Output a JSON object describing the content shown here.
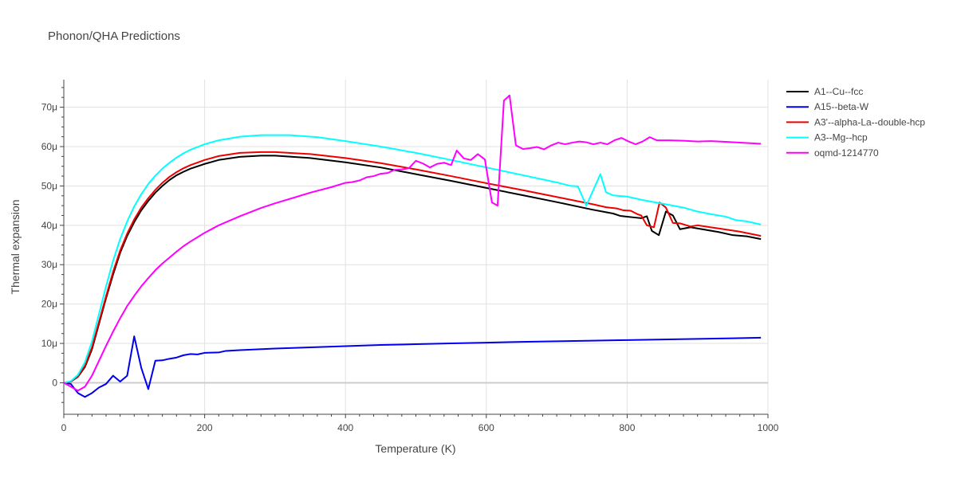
{
  "chart_data": {
    "type": "line",
    "title": "Phonon/QHA Predictions",
    "xlabel": "Temperature (K)",
    "ylabel": "Thermal expansion",
    "xlim": [
      0,
      1000
    ],
    "ylim": [
      -8e-06,
      7.7e-05
    ],
    "xticks": [
      0,
      200,
      400,
      600,
      800,
      1000
    ],
    "xtick_labels": [
      "0",
      "200",
      "400",
      "600",
      "800",
      "1000"
    ],
    "yticks": [
      0,
      1e-05,
      2e-05,
      3e-05,
      4e-05,
      5e-05,
      6e-05,
      7e-05
    ],
    "ytick_labels": [
      "0",
      "10μ",
      "20μ",
      "30μ",
      "40μ",
      "50μ",
      "60μ",
      "70μ"
    ],
    "grid": true,
    "legend_position": "top-right",
    "series": [
      {
        "name": "A1--Cu--fcc",
        "color": "#000000",
        "points": [
          [
            0,
            0
          ],
          [
            10,
            3e-07
          ],
          [
            20,
            1.5e-06
          ],
          [
            30,
            4e-06
          ],
          [
            40,
            8.5e-06
          ],
          [
            50,
            1.5e-05
          ],
          [
            60,
            2.15e-05
          ],
          [
            70,
            2.75e-05
          ],
          [
            80,
            3.3e-05
          ],
          [
            90,
            3.73e-05
          ],
          [
            100,
            4.08e-05
          ],
          [
            110,
            4.38e-05
          ],
          [
            120,
            4.62e-05
          ],
          [
            130,
            4.83e-05
          ],
          [
            140,
            5e-05
          ],
          [
            150,
            5.15e-05
          ],
          [
            160,
            5.27e-05
          ],
          [
            170,
            5.36e-05
          ],
          [
            180,
            5.44e-05
          ],
          [
            200,
            5.56e-05
          ],
          [
            220,
            5.66e-05
          ],
          [
            250,
            5.74e-05
          ],
          [
            280,
            5.77e-05
          ],
          [
            300,
            5.77e-05
          ],
          [
            350,
            5.71e-05
          ],
          [
            400,
            5.6e-05
          ],
          [
            450,
            5.47e-05
          ],
          [
            500,
            5.3e-05
          ],
          [
            550,
            5.13e-05
          ],
          [
            600,
            4.95e-05
          ],
          [
            650,
            4.77e-05
          ],
          [
            700,
            4.59e-05
          ],
          [
            750,
            4.4e-05
          ],
          [
            780,
            4.3e-05
          ],
          [
            790,
            4.24e-05
          ],
          [
            800,
            4.22e-05
          ],
          [
            810,
            4.2e-05
          ],
          [
            820,
            4.18e-05
          ],
          [
            828,
            4.23e-05
          ],
          [
            835,
            3.86e-05
          ],
          [
            845,
            3.75e-05
          ],
          [
            855,
            4.35e-05
          ],
          [
            865,
            4.25e-05
          ],
          [
            875,
            3.9e-05
          ],
          [
            890,
            3.95e-05
          ],
          [
            910,
            3.89e-05
          ],
          [
            930,
            3.83e-05
          ],
          [
            950,
            3.75e-05
          ],
          [
            970,
            3.72e-05
          ],
          [
            990,
            3.65e-05
          ]
        ]
      },
      {
        "name": "A15--beta-W",
        "color": "#0000ee",
        "points": [
          [
            0,
            0
          ],
          [
            10,
            -3e-07
          ],
          [
            20,
            -2.6e-06
          ],
          [
            30,
            -3.6e-06
          ],
          [
            40,
            -2.6e-06
          ],
          [
            50,
            -1.2e-06
          ],
          [
            60,
            -3e-07
          ],
          [
            70,
            1.8e-06
          ],
          [
            80,
            3e-07
          ],
          [
            90,
            1.8e-06
          ],
          [
            100,
            1.18e-05
          ],
          [
            110,
            3.8e-06
          ],
          [
            120,
            -1.6e-06
          ],
          [
            130,
            5.6e-06
          ],
          [
            140,
            5.7e-06
          ],
          [
            150,
            6.1e-06
          ],
          [
            160,
            6.4e-06
          ],
          [
            170,
            7e-06
          ],
          [
            180,
            7.3e-06
          ],
          [
            190,
            7.2e-06
          ],
          [
            200,
            7.6e-06
          ],
          [
            220,
            7.7e-06
          ],
          [
            230,
            8.1e-06
          ],
          [
            250,
            8.3e-06
          ],
          [
            300,
            8.7e-06
          ],
          [
            350,
            9e-06
          ],
          [
            400,
            9.3e-06
          ],
          [
            450,
            9.6e-06
          ],
          [
            500,
            9.8e-06
          ],
          [
            550,
            1e-05
          ],
          [
            600,
            1.02e-05
          ],
          [
            650,
            1.04e-05
          ],
          [
            700,
            1.055e-05
          ],
          [
            750,
            1.07e-05
          ],
          [
            800,
            1.085e-05
          ],
          [
            850,
            1.1e-05
          ],
          [
            900,
            1.115e-05
          ],
          [
            950,
            1.13e-05
          ],
          [
            990,
            1.145e-05
          ]
        ]
      },
      {
        "name": "A3'--alpha-La--double-hcp",
        "color": "#ee0000",
        "points": [
          [
            0,
            0
          ],
          [
            10,
            3e-07
          ],
          [
            20,
            1.6e-06
          ],
          [
            30,
            4.3e-06
          ],
          [
            40,
            9e-06
          ],
          [
            50,
            1.55e-05
          ],
          [
            60,
            2.2e-05
          ],
          [
            70,
            2.82e-05
          ],
          [
            80,
            3.36e-05
          ],
          [
            90,
            3.79e-05
          ],
          [
            100,
            4.15e-05
          ],
          [
            110,
            4.45e-05
          ],
          [
            120,
            4.69e-05
          ],
          [
            130,
            4.9e-05
          ],
          [
            140,
            5.08e-05
          ],
          [
            150,
            5.23e-05
          ],
          [
            160,
            5.35e-05
          ],
          [
            170,
            5.45e-05
          ],
          [
            180,
            5.53e-05
          ],
          [
            200,
            5.66e-05
          ],
          [
            220,
            5.76e-05
          ],
          [
            250,
            5.84e-05
          ],
          [
            280,
            5.86e-05
          ],
          [
            300,
            5.86e-05
          ],
          [
            350,
            5.81e-05
          ],
          [
            400,
            5.71e-05
          ],
          [
            450,
            5.58e-05
          ],
          [
            500,
            5.42e-05
          ],
          [
            550,
            5.25e-05
          ],
          [
            600,
            5.07e-05
          ],
          [
            650,
            4.9e-05
          ],
          [
            700,
            4.72e-05
          ],
          [
            750,
            4.54e-05
          ],
          [
            770,
            4.46e-05
          ],
          [
            785,
            4.43e-05
          ],
          [
            795,
            4.38e-05
          ],
          [
            805,
            4.37e-05
          ],
          [
            815,
            4.28e-05
          ],
          [
            820,
            4.25e-05
          ],
          [
            828,
            4e-05
          ],
          [
            838,
            3.95e-05
          ],
          [
            846,
            4.58e-05
          ],
          [
            855,
            4.45e-05
          ],
          [
            865,
            4.06e-05
          ],
          [
            875,
            4.05e-05
          ],
          [
            890,
            3.97e-05
          ],
          [
            900,
            4e-05
          ],
          [
            930,
            3.92e-05
          ],
          [
            960,
            3.84e-05
          ],
          [
            990,
            3.73e-05
          ]
        ]
      },
      {
        "name": "A3--Mg--hcp",
        "color": "#00ffff",
        "points": [
          [
            0,
            0
          ],
          [
            10,
            4e-07
          ],
          [
            20,
            2e-06
          ],
          [
            30,
            5.2e-06
          ],
          [
            40,
            1.05e-05
          ],
          [
            50,
            1.75e-05
          ],
          [
            60,
            2.45e-05
          ],
          [
            70,
            3.1e-05
          ],
          [
            80,
            3.65e-05
          ],
          [
            90,
            4.1e-05
          ],
          [
            100,
            4.48e-05
          ],
          [
            110,
            4.79e-05
          ],
          [
            120,
            5.05e-05
          ],
          [
            130,
            5.26e-05
          ],
          [
            140,
            5.44e-05
          ],
          [
            150,
            5.59e-05
          ],
          [
            160,
            5.72e-05
          ],
          [
            170,
            5.83e-05
          ],
          [
            180,
            5.92e-05
          ],
          [
            200,
            6.06e-05
          ],
          [
            220,
            6.16e-05
          ],
          [
            250,
            6.25e-05
          ],
          [
            280,
            6.29e-05
          ],
          [
            320,
            6.29e-05
          ],
          [
            360,
            6.24e-05
          ],
          [
            400,
            6.14e-05
          ],
          [
            450,
            6e-05
          ],
          [
            500,
            5.84e-05
          ],
          [
            550,
            5.66e-05
          ],
          [
            600,
            5.47e-05
          ],
          [
            650,
            5.28e-05
          ],
          [
            700,
            5.09e-05
          ],
          [
            720,
            5e-05
          ],
          [
            730,
            4.99e-05
          ],
          [
            742,
            4.5e-05
          ],
          [
            752,
            4.9e-05
          ],
          [
            762,
            5.3e-05
          ],
          [
            770,
            4.84e-05
          ],
          [
            780,
            4.76e-05
          ],
          [
            800,
            4.73e-05
          ],
          [
            820,
            4.65e-05
          ],
          [
            850,
            4.55e-05
          ],
          [
            880,
            4.45e-05
          ],
          [
            900,
            4.35e-05
          ],
          [
            920,
            4.28e-05
          ],
          [
            940,
            4.22e-05
          ],
          [
            955,
            4.13e-05
          ],
          [
            970,
            4.1e-05
          ],
          [
            990,
            4.02e-05
          ]
        ]
      },
      {
        "name": "oqmd-1214770",
        "color": "#ff00ff",
        "points": [
          [
            0,
            0
          ],
          [
            10,
            -1e-06
          ],
          [
            20,
            -2e-06
          ],
          [
            30,
            -1e-06
          ],
          [
            40,
            1.8e-06
          ],
          [
            50,
            5.6e-06
          ],
          [
            60,
            9.4e-06
          ],
          [
            70,
            1.3e-05
          ],
          [
            80,
            1.64e-05
          ],
          [
            90,
            1.95e-05
          ],
          [
            100,
            2.21e-05
          ],
          [
            110,
            2.45e-05
          ],
          [
            120,
            2.66e-05
          ],
          [
            130,
            2.86e-05
          ],
          [
            140,
            3.03e-05
          ],
          [
            150,
            3.18e-05
          ],
          [
            160,
            3.33e-05
          ],
          [
            170,
            3.47e-05
          ],
          [
            180,
            3.59e-05
          ],
          [
            200,
            3.81e-05
          ],
          [
            220,
            4e-05
          ],
          [
            250,
            4.23e-05
          ],
          [
            280,
            4.44e-05
          ],
          [
            300,
            4.56e-05
          ],
          [
            330,
            4.72e-05
          ],
          [
            350,
            4.83e-05
          ],
          [
            380,
            4.97e-05
          ],
          [
            400,
            5.08e-05
          ],
          [
            410,
            5.1e-05
          ],
          [
            420,
            5.14e-05
          ],
          [
            430,
            5.22e-05
          ],
          [
            440,
            5.25e-05
          ],
          [
            450,
            5.31e-05
          ],
          [
            460,
            5.33e-05
          ],
          [
            470,
            5.41e-05
          ],
          [
            480,
            5.42e-05
          ],
          [
            490,
            5.45e-05
          ],
          [
            500,
            5.64e-05
          ],
          [
            510,
            5.57e-05
          ],
          [
            520,
            5.47e-05
          ],
          [
            530,
            5.56e-05
          ],
          [
            540,
            5.59e-05
          ],
          [
            550,
            5.53e-05
          ],
          [
            558,
            5.9e-05
          ],
          [
            568,
            5.7e-05
          ],
          [
            578,
            5.66e-05
          ],
          [
            588,
            5.81e-05
          ],
          [
            598,
            5.67e-05
          ],
          [
            608,
            4.58e-05
          ],
          [
            616,
            4.5e-05
          ],
          [
            625,
            7.17e-05
          ],
          [
            633,
            7.3e-05
          ],
          [
            642,
            6.03e-05
          ],
          [
            652,
            5.94e-05
          ],
          [
            662,
            5.96e-05
          ],
          [
            672,
            5.99e-05
          ],
          [
            682,
            5.93e-05
          ],
          [
            692,
            6.03e-05
          ],
          [
            702,
            6.1e-05
          ],
          [
            712,
            6.06e-05
          ],
          [
            722,
            6.1e-05
          ],
          [
            732,
            6.13e-05
          ],
          [
            742,
            6.11e-05
          ],
          [
            752,
            6.06e-05
          ],
          [
            762,
            6.1e-05
          ],
          [
            772,
            6.06e-05
          ],
          [
            782,
            6.16e-05
          ],
          [
            792,
            6.22e-05
          ],
          [
            802,
            6.13e-05
          ],
          [
            812,
            6.06e-05
          ],
          [
            822,
            6.13e-05
          ],
          [
            832,
            6.24e-05
          ],
          [
            842,
            6.16e-05
          ],
          [
            860,
            6.16e-05
          ],
          [
            880,
            6.15e-05
          ],
          [
            900,
            6.13e-05
          ],
          [
            920,
            6.14e-05
          ],
          [
            950,
            6.11e-05
          ],
          [
            990,
            6.07e-05
          ]
        ]
      }
    ]
  }
}
